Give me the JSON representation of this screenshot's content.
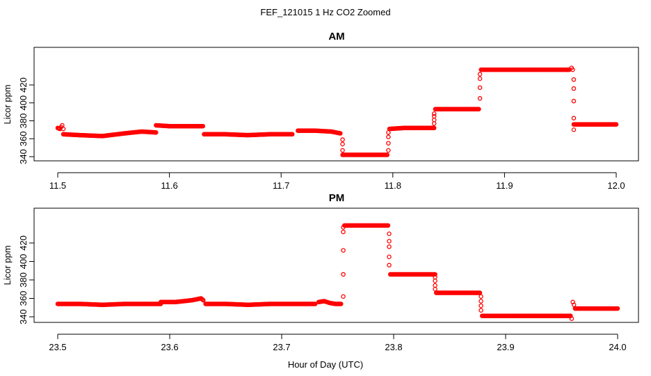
{
  "figure": {
    "title": "FEF_121015  1 Hz CO2 Zoomed",
    "xlabel": "Hour of Day (UTC)"
  },
  "style": {
    "point_color": "#ff0000",
    "axis_color": "#000000"
  },
  "chart_data": [
    {
      "type": "scatter",
      "title": "AM",
      "ylabel": "Licor ppm",
      "xlim": [
        11.5,
        12.0
      ],
      "ylim": [
        337,
        449
      ],
      "x_ticks": [
        "11.5",
        "11.6",
        "11.7",
        "11.8",
        "11.9",
        "12.0"
      ],
      "y_ticks": [
        "340",
        "360",
        "380",
        "400",
        "420"
      ],
      "grid": false,
      "series": [
        {
          "segments": [
            {
              "x": [
                11.5,
                11.502,
                11.503,
                11.504,
                11.505
              ],
              "y": [
                372,
                371,
                373,
                375,
                371
              ]
            },
            {
              "x": [
                11.505,
                11.52,
                11.54,
                11.56,
                11.575,
                11.588
              ],
              "y": [
                365,
                364,
                363,
                366,
                368,
                367
              ]
            },
            {
              "x": [
                11.588,
                11.6,
                11.615,
                11.63
              ],
              "y": [
                375,
                374,
                374,
                374
              ]
            },
            {
              "x": [
                11.631,
                11.65,
                11.67,
                11.69,
                11.71
              ],
              "y": [
                365,
                365,
                364,
                365,
                365
              ]
            },
            {
              "x": [
                11.715,
                11.73,
                11.745,
                11.753
              ],
              "y": [
                369,
                369,
                368,
                366
              ]
            },
            {
              "x": [
                11.755,
                11.77,
                11.785,
                11.795
              ],
              "y": [
                342,
                342,
                342,
                342
              ]
            },
            {
              "x": [
                11.797,
                11.81,
                11.825,
                11.837
              ],
              "y": [
                371,
                372,
                372,
                372
              ]
            },
            {
              "x": [
                11.838,
                11.85,
                11.865,
                11.877
              ],
              "y": [
                393,
                393,
                393,
                393
              ]
            },
            {
              "x": [
                11.879,
                11.9,
                11.92,
                11.94,
                11.958
              ],
              "y": [
                437,
                437,
                437,
                437,
                437
              ]
            },
            {
              "x": [
                11.96,
                11.961
              ],
              "y": [
                439,
                437
              ]
            },
            {
              "x": [
                11.962,
                11.97,
                11.985,
                12.0
              ],
              "y": [
                376,
                376,
                376,
                376
              ]
            }
          ],
          "transitions": [
            {
              "x": 11.755,
              "y": [
                359,
                354,
                347
              ]
            },
            {
              "x": 11.796,
              "y": [
                347,
                355,
                362,
                367
              ]
            },
            {
              "x": 11.837,
              "y": [
                377,
                381,
                385,
                388
              ]
            },
            {
              "x": 11.878,
              "y": [
                405,
                417,
                427,
                432
              ]
            },
            {
              "x": 11.962,
              "y": [
                370,
                383,
                402,
                416,
                426
              ]
            }
          ]
        }
      ]
    },
    {
      "type": "scatter",
      "title": "PM",
      "ylabel": "Licor ppm",
      "xlim": [
        23.5,
        24.0
      ],
      "ylim": [
        333,
        445
      ],
      "x_ticks": [
        "23.5",
        "23.6",
        "23.7",
        "23.8",
        "23.9",
        "24.0"
      ],
      "y_ticks": [
        "340",
        "360",
        "380",
        "400",
        "420"
      ],
      "grid": false,
      "series": [
        {
          "segments": [
            {
              "x": [
                23.5,
                23.52,
                23.54,
                23.56,
                23.58,
                23.592
              ],
              "y": [
                354,
                354,
                353,
                354,
                354,
                354
              ]
            },
            {
              "x": [
                23.592,
                23.605,
                23.62,
                23.628,
                23.63
              ],
              "y": [
                356,
                356,
                358,
                360,
                358
              ]
            },
            {
              "x": [
                23.632,
                23.65,
                23.67,
                23.69,
                23.71,
                23.73
              ],
              "y": [
                354,
                354,
                353,
                354,
                354,
                354
              ]
            },
            {
              "x": [
                23.733,
                23.738,
                23.743,
                23.748,
                23.753
              ],
              "y": [
                356,
                357,
                355,
                354,
                354
              ]
            },
            {
              "x": [
                23.756,
                23.77,
                23.785,
                23.795
              ],
              "y": [
                439,
                439,
                439,
                439
              ]
            },
            {
              "x": [
                23.797,
                23.81,
                23.825,
                23.837
              ],
              "y": [
                386,
                386,
                386,
                386
              ]
            },
            {
              "x": [
                23.838,
                23.85,
                23.865,
                23.877
              ],
              "y": [
                366,
                366,
                366,
                366
              ]
            },
            {
              "x": [
                23.879,
                23.9,
                23.92,
                23.94,
                23.958
              ],
              "y": [
                341,
                341,
                341,
                341,
                341
              ]
            },
            {
              "x": [
                23.959,
                23.96,
                23.961
              ],
              "y": [
                338,
                356,
                353
              ]
            },
            {
              "x": [
                23.962,
                23.975,
                23.99,
                24.0
              ],
              "y": [
                349,
                349,
                349,
                349
              ]
            }
          ],
          "transitions": [
            {
              "x": 23.755,
              "y": [
                362,
                386,
                412,
                432,
                437
              ]
            },
            {
              "x": 23.796,
              "y": [
                396,
                405,
                416,
                422,
                430
              ]
            },
            {
              "x": 23.837,
              "y": [
                370,
                374,
                379,
                383
              ]
            },
            {
              "x": 23.878,
              "y": [
                347,
                352,
                357,
                362
              ]
            }
          ]
        }
      ]
    }
  ]
}
